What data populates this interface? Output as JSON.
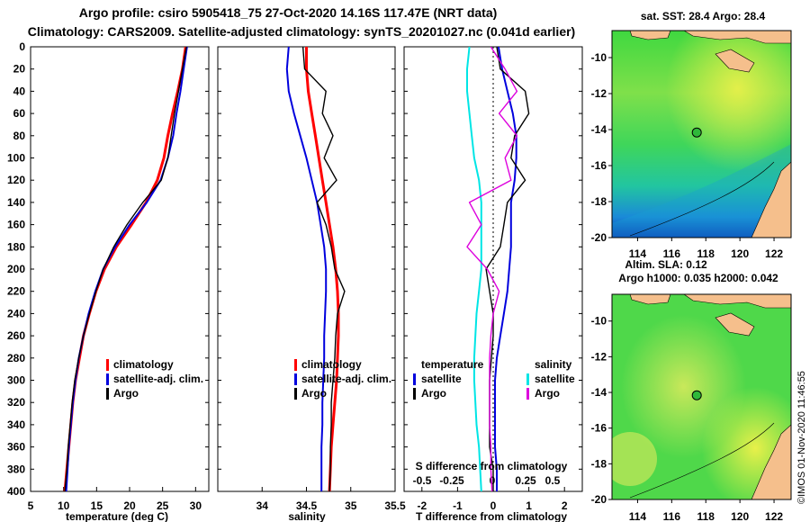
{
  "header": {
    "line1": "Argo profile: csiro 5905418_75 27-Oct-2020 14.16S 117.47E (NRT data)",
    "line2": "Climatology: CARS2009. Satellite-adjusted climatology: synTS_20201027.nc (0.041d earlier)"
  },
  "colors": {
    "climatology": "#ff0000",
    "satellite": "#0000dd",
    "argo": "#000000",
    "salinity_diff": "#dd00dd",
    "satellite_salinity_diff": "#00e5e5",
    "land": "#f5bf8c",
    "ocean": "#4fd84a"
  },
  "chart_data": [
    {
      "type": "line",
      "name": "temperature_profile",
      "xlabel": "temperature (deg C)",
      "ylabel": "depth",
      "xlim": [
        5,
        32
      ],
      "ylim": [
        400,
        0
      ],
      "x_ticks": [
        "5",
        "10",
        "15",
        "20",
        "25",
        "30"
      ],
      "y_ticks": [
        "0",
        "20",
        "40",
        "60",
        "80",
        "100",
        "120",
        "140",
        "160",
        "180",
        "200",
        "220",
        "240",
        "260",
        "280",
        "300",
        "320",
        "340",
        "360",
        "380",
        "400"
      ],
      "legend": [
        "climatology",
        "satellite-adj. clim.",
        "Argo"
      ],
      "series": [
        {
          "name": "climatology",
          "depth": [
            0,
            20,
            40,
            60,
            80,
            100,
            120,
            140,
            160,
            180,
            200,
            220,
            240,
            260,
            280,
            300,
            320,
            340,
            360,
            380,
            400
          ],
          "values": [
            28.5,
            28.0,
            27.3,
            26.5,
            25.8,
            25.2,
            24.2,
            22.5,
            20.3,
            18.0,
            16.2,
            14.9,
            13.9,
            13.0,
            12.4,
            11.8,
            11.4,
            11.1,
            10.8,
            10.5,
            10.2
          ]
        },
        {
          "name": "satellite-adj. clim.",
          "depth": [
            0,
            20,
            40,
            60,
            80,
            100,
            120,
            140,
            160,
            180,
            200,
            220,
            240,
            260,
            280,
            300,
            320,
            340,
            360,
            380,
            400
          ],
          "values": [
            28.7,
            28.2,
            27.7,
            27.1,
            26.6,
            25.8,
            24.7,
            22.6,
            20.0,
            17.8,
            16.0,
            14.8,
            13.8,
            13.0,
            12.3,
            11.8,
            11.4,
            11.1,
            10.8,
            10.6,
            10.4
          ]
        },
        {
          "name": "Argo",
          "depth": [
            0,
            20,
            40,
            60,
            80,
            100,
            120,
            140,
            160,
            180,
            200,
            220,
            240,
            260,
            280,
            300,
            320,
            340,
            360,
            380,
            400
          ],
          "values": [
            28.6,
            28.0,
            27.4,
            26.8,
            26.3,
            25.8,
            24.8,
            22.0,
            19.6,
            17.6,
            16.0,
            14.9,
            13.9,
            13.0,
            12.3,
            11.7,
            11.3,
            11.0,
            10.7,
            10.5,
            10.2
          ]
        }
      ]
    },
    {
      "type": "line",
      "name": "salinity_profile",
      "xlabel": "salinity",
      "xlim": [
        33.5,
        35.5
      ],
      "ylim": [
        400,
        0
      ],
      "x_ticks": [
        "34",
        "34.5",
        "35",
        "35.5"
      ],
      "legend": [
        "climatology",
        "satellite-adj. clim.",
        "Argo"
      ],
      "series": [
        {
          "name": "climatology",
          "depth": [
            0,
            20,
            40,
            60,
            80,
            100,
            120,
            140,
            160,
            180,
            200,
            220,
            240,
            260,
            280,
            300,
            320,
            340,
            360,
            380,
            400
          ],
          "values": [
            34.5,
            34.5,
            34.52,
            34.56,
            34.6,
            34.64,
            34.68,
            34.72,
            34.76,
            34.8,
            34.83,
            34.85,
            34.86,
            34.86,
            34.85,
            34.84,
            34.82,
            34.8,
            34.78,
            34.77,
            34.76
          ]
        },
        {
          "name": "satellite-adj. clim.",
          "depth": [
            0,
            20,
            40,
            60,
            80,
            100,
            120,
            140,
            160,
            180,
            200,
            220,
            240,
            260,
            280,
            300,
            320,
            340,
            360,
            380,
            400
          ],
          "values": [
            34.3,
            34.28,
            34.3,
            34.36,
            34.43,
            34.5,
            34.56,
            34.62,
            34.66,
            34.7,
            34.72,
            34.72,
            34.71,
            34.7,
            34.7,
            34.69,
            34.68,
            34.68,
            34.67,
            34.67,
            34.67
          ]
        },
        {
          "name": "Argo",
          "depth": [
            0,
            20,
            40,
            60,
            80,
            100,
            120,
            140,
            160,
            180,
            200,
            220,
            240,
            260,
            280,
            300,
            320,
            340,
            360,
            380,
            400
          ],
          "values": [
            34.46,
            34.48,
            34.72,
            34.68,
            34.8,
            34.7,
            34.84,
            34.62,
            34.72,
            34.78,
            34.82,
            34.93,
            34.85,
            34.83,
            34.82,
            34.8,
            34.78,
            34.78,
            34.77,
            34.77,
            34.76
          ]
        }
      ]
    },
    {
      "type": "line",
      "name": "difference_from_climatology",
      "xlabel": "T difference from climatology",
      "xlim": [
        -2.5,
        2.5
      ],
      "ylim": [
        400,
        0
      ],
      "x_ticks": [
        "-2",
        "-1",
        "0",
        "1",
        "2"
      ],
      "s_axis_label": "S difference from climatology",
      "s_ticks": [
        "-0.5",
        "-0.25",
        "0",
        "0.25",
        "0.5"
      ],
      "legend_headers": [
        "temperature",
        "salinity"
      ],
      "legend": [
        "satellite",
        "Argo",
        "satellite",
        "Argo"
      ],
      "series": [
        {
          "name": "temperature satellite",
          "depth": [
            0,
            20,
            40,
            60,
            80,
            100,
            120,
            140,
            160,
            180,
            200,
            220,
            240,
            260,
            280,
            300,
            320,
            340,
            360,
            380,
            400
          ],
          "values": [
            0.15,
            0.25,
            0.4,
            0.55,
            0.65,
            0.65,
            0.6,
            0.5,
            0.5,
            0.5,
            0.45,
            0.4,
            0.3,
            0.2,
            0.1,
            0.05,
            0.05,
            0.05,
            0.05,
            0.1,
            0.1
          ]
        },
        {
          "name": "temperature Argo",
          "depth": [
            0,
            20,
            40,
            60,
            80,
            100,
            120,
            140,
            160,
            180,
            200,
            220,
            240,
            260,
            280,
            300,
            320,
            340,
            360,
            380,
            400
          ],
          "values": [
            0.1,
            0.2,
            0.9,
            1.0,
            0.6,
            0.5,
            0.9,
            0.4,
            0.3,
            0.2,
            -0.2,
            -0.1,
            0.0,
            0.0,
            -0.05,
            -0.1,
            -0.1,
            -0.1,
            -0.1,
            0.0,
            0.0
          ]
        },
        {
          "name": "salinity satellite",
          "depth": [
            0,
            20,
            40,
            60,
            80,
            100,
            120,
            140,
            160,
            180,
            200,
            220,
            240,
            260,
            280,
            300,
            320,
            340,
            360,
            380,
            400
          ],
          "values": [
            -0.2,
            -0.22,
            -0.22,
            -0.2,
            -0.18,
            -0.16,
            -0.12,
            -0.1,
            -0.1,
            -0.1,
            -0.1,
            -0.12,
            -0.14,
            -0.15,
            -0.16,
            -0.16,
            -0.15,
            -0.14,
            -0.12,
            -0.11,
            -0.1
          ]
        },
        {
          "name": "salinity Argo",
          "depth": [
            0,
            20,
            40,
            60,
            80,
            100,
            120,
            140,
            160,
            180,
            200,
            220,
            240,
            260,
            280,
            300,
            320,
            340,
            360,
            380,
            400
          ],
          "values": [
            -0.02,
            0.1,
            0.2,
            0.05,
            0.2,
            0.1,
            0.15,
            -0.2,
            -0.1,
            -0.22,
            -0.05,
            0.05,
            0.0,
            -0.02,
            -0.03,
            -0.03,
            -0.03,
            -0.03,
            -0.02,
            -0.02,
            -0.01
          ]
        }
      ]
    },
    {
      "type": "heatmap",
      "name": "sst_map",
      "title": "sat. SST: 28.4 Argo: 28.4",
      "x_ticks": [
        "114",
        "116",
        "118",
        "120",
        "122"
      ],
      "y_ticks": [
        "-10",
        "-12",
        "-14",
        "-16",
        "-18",
        "-20"
      ],
      "xlim": [
        112.5,
        123
      ],
      "ylim": [
        -20,
        -8.5
      ],
      "profile_location": {
        "lon": 117.47,
        "lat": -14.16
      },
      "footer": "Altim. SLA: 0.12"
    },
    {
      "type": "heatmap",
      "name": "altimetry_map",
      "title": "Argo h1000: 0.035 h2000: 0.042",
      "x_ticks": [
        "114",
        "116",
        "118",
        "120",
        "122"
      ],
      "y_ticks": [
        "-10",
        "-12",
        "-14",
        "-16",
        "-18",
        "-20"
      ],
      "xlim": [
        112.5,
        123
      ],
      "ylim": [
        -20,
        -8.5
      ],
      "profile_location": {
        "lon": 117.47,
        "lat": -14.16
      }
    }
  ],
  "credit": "©IMOS 01-Nov-2020 11:46:55"
}
